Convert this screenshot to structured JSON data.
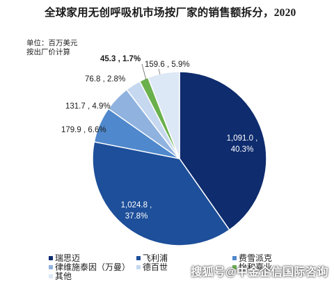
{
  "chart_data": {
    "type": "pie",
    "title": "全球家用无创呼吸机市场按厂家的销售额拆分，2020",
    "unit_lines": [
      "单位：百万美元",
      "按出厂价计算"
    ],
    "slices": [
      {
        "name": "瑞思迈",
        "value": 1091.0,
        "percent": 40.3,
        "label": "1,091.0 ,\n40.3%",
        "color": "#0e2c6e"
      },
      {
        "name": "飞利浦",
        "value": 1024.8,
        "percent": 37.8,
        "label": "1,024.8 ,\n37.8%",
        "color": "#1d4f9a"
      },
      {
        "name": "费雪派克",
        "value": 179.9,
        "percent": 6.6,
        "label": "179.9 , 6.6%",
        "color": "#4f88cc"
      },
      {
        "name": "律维施泰因（万曼）",
        "value": 131.7,
        "percent": 4.9,
        "label": "131.7 , 4.9%",
        "color": "#8fb2df"
      },
      {
        "name": "德百世",
        "value": 76.8,
        "percent": 2.8,
        "label": "76.8 , 2.8%",
        "color": "#c5d8ef"
      },
      {
        "name": "怡和嘉业",
        "value": 45.3,
        "percent": 1.7,
        "label": "45.3 , 1.7%",
        "color": "#6ab04c"
      },
      {
        "name": "其他",
        "value": 159.6,
        "percent": 5.9,
        "label": "159.6 , 5.9%",
        "color": "#dde8f6"
      }
    ],
    "legend_position": "bottom"
  },
  "watermark": "搜狐号@中金企信国际咨询"
}
